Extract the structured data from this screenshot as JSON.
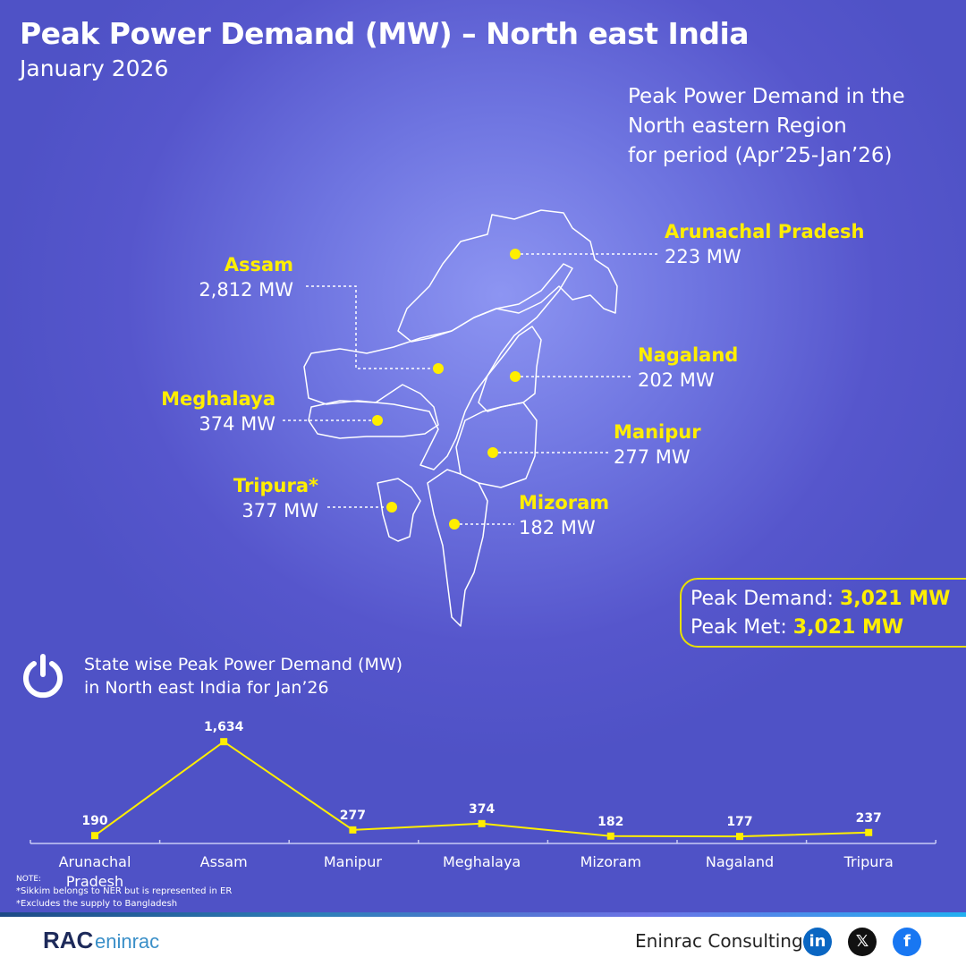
{
  "header": {
    "title": "Peak Power Demand (MW) – North east India",
    "subtitle": "January 2026"
  },
  "period": {
    "line1": "Peak Power Demand in the",
    "line2": "North eastern Region",
    "line3": "for period (Apr’25-Jan’26)"
  },
  "map_labels": [
    {
      "name": "Arunachal Pradesh",
      "value": "223 MW"
    },
    {
      "name": "Assam",
      "value": "2,812 MW"
    },
    {
      "name": "Nagaland",
      "value": "202 MW"
    },
    {
      "name": "Meghalaya",
      "value": "374 MW"
    },
    {
      "name": "Manipur",
      "value": "277 MW"
    },
    {
      "name": "Tripura*",
      "value": "377 MW"
    },
    {
      "name": "Mizoram",
      "value": "182 MW"
    }
  ],
  "summary": {
    "demand_label": "Peak Demand:",
    "demand_value": "3,021 MW",
    "met_label": "Peak Met:",
    "met_value": "3,021 MW"
  },
  "chart_title": {
    "line1": "State wise Peak Power Demand (MW)",
    "line2": "in North east India for Jan’26"
  },
  "chart_data": {
    "type": "line",
    "categories": [
      "Arunachal Pradesh",
      "Assam",
      "Manipur",
      "Meghalaya",
      "Mizoram",
      "Nagaland",
      "Tripura"
    ],
    "values": [
      190,
      1634,
      277,
      374,
      182,
      177,
      237
    ],
    "value_labels": [
      "190",
      "1,634",
      "277",
      "374",
      "182",
      "177",
      "237"
    ],
    "line_color": "#ffee00",
    "title": "State wise Peak Power Demand (MW) in North east India for Jan’26"
  },
  "notes": {
    "heading": "NOTE:",
    "n1": "*Sikkim belongs to NER but is represented in ER",
    "n2": "*Excludes the supply to Bangladesh"
  },
  "footer": {
    "company": "Eninrac Consulting",
    "logo_text": "RAC eninrac",
    "social": [
      "linkedin-icon",
      "x-icon",
      "facebook-icon"
    ]
  },
  "colors": {
    "accent": "#ffee00",
    "background": "#5656cc"
  }
}
